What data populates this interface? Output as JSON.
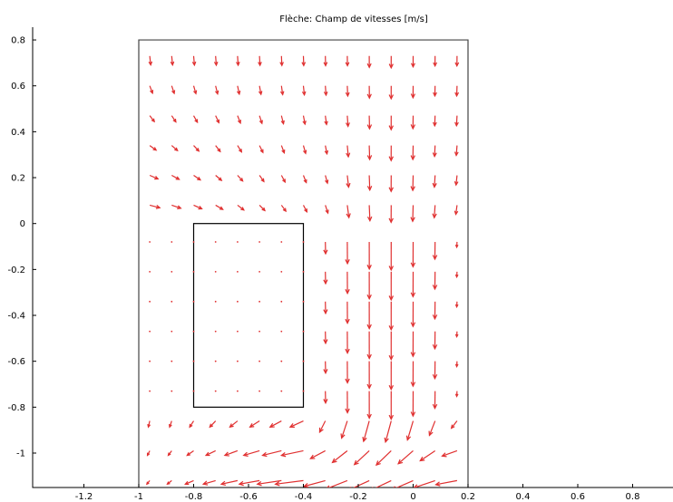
{
  "chart_data": {
    "type": "quiver",
    "title": "Flèche: Champ de vitesses [m/s]",
    "xlabel": "",
    "ylabel": "",
    "xlim": [
      -1.4,
      0.95
    ],
    "ylim": [
      -1.15,
      0.84
    ],
    "x_ticks": [
      "-1.2",
      "-1",
      "-0.8",
      "-0.6",
      "-0.4",
      "-0.2",
      "0",
      "0.2",
      "0.4",
      "0.6",
      "0.8"
    ],
    "x_tick_values": [
      -1.2,
      -1.0,
      -0.8,
      -0.6,
      -0.4,
      -0.2,
      0.0,
      0.2,
      0.4,
      0.6,
      0.8
    ],
    "y_ticks": [
      "0.8",
      "0.6",
      "0.4",
      "0.2",
      "0",
      "-0.2",
      "-0.4",
      "-0.6",
      "-0.8",
      "-1"
    ],
    "y_tick_values": [
      0.8,
      0.6,
      0.4,
      0.2,
      0.0,
      -0.2,
      -0.4,
      -0.6,
      -0.8,
      -1.0
    ],
    "grid": false,
    "arrow_color": "#e03030",
    "domain_outline": {
      "x": [
        -1.0,
        0.2
      ],
      "y": [
        -1.15,
        0.8
      ]
    },
    "obstacle": {
      "x": [
        -0.8,
        -0.4
      ],
      "y": [
        -0.8,
        0.0
      ]
    },
    "field": {
      "x_values": [
        -0.96,
        -0.88,
        -0.8,
        -0.72,
        -0.64,
        -0.56,
        -0.48,
        -0.4,
        -0.32,
        -0.24,
        -0.16,
        -0.08,
        0.0,
        0.08,
        0.16
      ],
      "y_values": [
        0.73,
        0.6,
        0.47,
        0.34,
        0.21,
        0.08,
        -0.08,
        -0.21,
        -0.34,
        -0.47,
        -0.6,
        -0.73,
        -0.86,
        -0.99,
        -1.12
      ]
    }
  }
}
